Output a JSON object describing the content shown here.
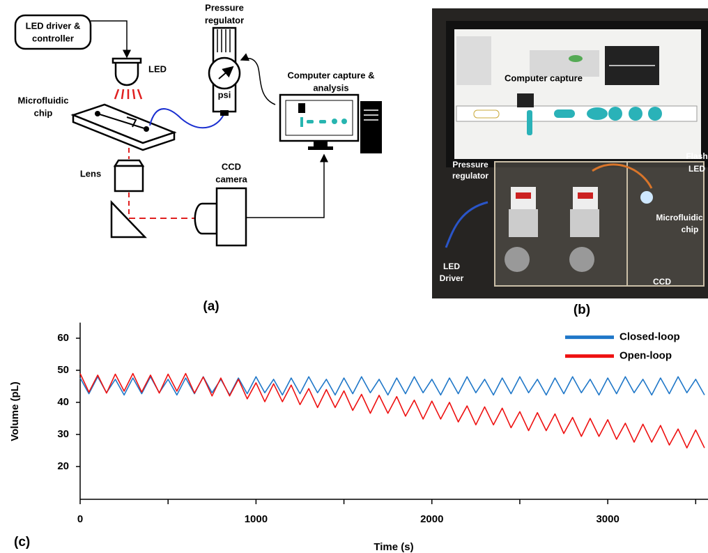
{
  "diagram": {
    "driver_label": [
      "LED driver &",
      "controller"
    ],
    "led_label": "LED",
    "regulator_label": [
      "Pressure",
      "regulator"
    ],
    "gauge_label": "psi",
    "chip_label": [
      "Microfluidic",
      "chip"
    ],
    "computer_label": [
      "Computer capture &",
      "analysis"
    ],
    "lens_label": "Lens",
    "camera_label": [
      "CCD",
      "camera"
    ],
    "panel_label": "(a)"
  },
  "photo": {
    "screen_label": "Computer capture",
    "regulator_label": [
      "Pressure",
      "regulator"
    ],
    "flash_label": [
      "Flash",
      "LED"
    ],
    "chip_label": [
      "Microfluidic",
      "chip"
    ],
    "driver_label": [
      "LED",
      "Driver"
    ],
    "ccd_label": "CCD",
    "panel_label": "(b)"
  },
  "chart_data": {
    "type": "line",
    "panel_label": "(c)",
    "x_label": "Time (s)",
    "y_label": "Volume (pL)",
    "x": [
      0,
      50,
      100,
      150,
      200,
      250,
      300,
      350,
      400,
      450,
      500,
      550,
      600,
      650,
      700,
      750,
      800,
      850,
      900,
      950,
      1000,
      1050,
      1100,
      1150,
      1200,
      1250,
      1300,
      1350,
      1400,
      1450,
      1500,
      1550,
      1600,
      1650,
      1700,
      1750,
      1800,
      1850,
      1900,
      1950,
      2000,
      2050,
      2100,
      2150,
      2200,
      2250,
      2300,
      2350,
      2400,
      2450,
      2500,
      2550,
      2600,
      2650,
      2700,
      2750,
      2800,
      2850,
      2900,
      2950,
      3000,
      3050,
      3100,
      3150,
      3200,
      3250,
      3300,
      3350,
      3400,
      3450,
      3500,
      3550
    ],
    "series": [
      {
        "name": "Closed-loop",
        "color": "#1f77c8",
        "values": [
          47.6,
          42.7,
          48.0,
          43.0,
          47.2,
          42.3,
          47.6,
          42.7,
          48.0,
          43.0,
          47.2,
          42.3,
          47.6,
          42.7,
          48.0,
          43.0,
          47.2,
          42.3,
          47.6,
          42.7,
          48.0,
          43.0,
          47.2,
          42.3,
          47.6,
          42.7,
          48.0,
          43.0,
          47.2,
          42.3,
          47.6,
          42.7,
          48.0,
          43.0,
          47.2,
          42.3,
          47.6,
          42.7,
          48.0,
          43.0,
          47.2,
          42.3,
          47.6,
          42.7,
          48.0,
          43.0,
          47.2,
          42.3,
          47.6,
          42.7,
          48.0,
          43.0,
          47.2,
          42.3,
          47.6,
          42.7,
          48.0,
          43.0,
          47.2,
          42.3,
          47.6,
          42.7,
          48.0,
          43.0,
          47.2,
          42.3,
          47.6,
          42.7,
          48.0,
          43.0,
          47.2,
          42.3
        ]
      },
      {
        "name": "Open-loop",
        "color": "#ee1111",
        "values": [
          49.0,
          43.2,
          48.5,
          42.9,
          48.8,
          43.5,
          49.0,
          43.2,
          48.5,
          42.9,
          48.8,
          43.5,
          49.0,
          42.9,
          47.9,
          42.0,
          47.6,
          42.0,
          47.2,
          41.1,
          46.1,
          40.2,
          45.8,
          40.2,
          45.4,
          39.3,
          44.3,
          38.4,
          44.0,
          38.4,
          43.6,
          37.5,
          42.5,
          36.6,
          42.2,
          36.6,
          41.8,
          35.7,
          40.7,
          34.8,
          40.4,
          34.8,
          40.0,
          33.9,
          38.9,
          33.0,
          38.6,
          33.0,
          38.2,
          32.1,
          37.1,
          31.2,
          36.8,
          31.2,
          36.4,
          30.3,
          35.3,
          29.4,
          35.0,
          29.4,
          34.6,
          28.5,
          33.5,
          27.6,
          33.2,
          27.6,
          32.8,
          26.7,
          31.7,
          25.8,
          31.4,
          25.8
        ]
      }
    ],
    "xlim": [
      0,
      3570
    ],
    "xticks": [
      0,
      1000,
      2000,
      3000
    ],
    "xminor_ticks": [
      500,
      1500,
      2500,
      3500
    ],
    "ylim": [
      10,
      64
    ],
    "yticks": [
      20,
      30,
      40,
      50,
      60
    ],
    "grid": false,
    "legend": "upper right"
  }
}
